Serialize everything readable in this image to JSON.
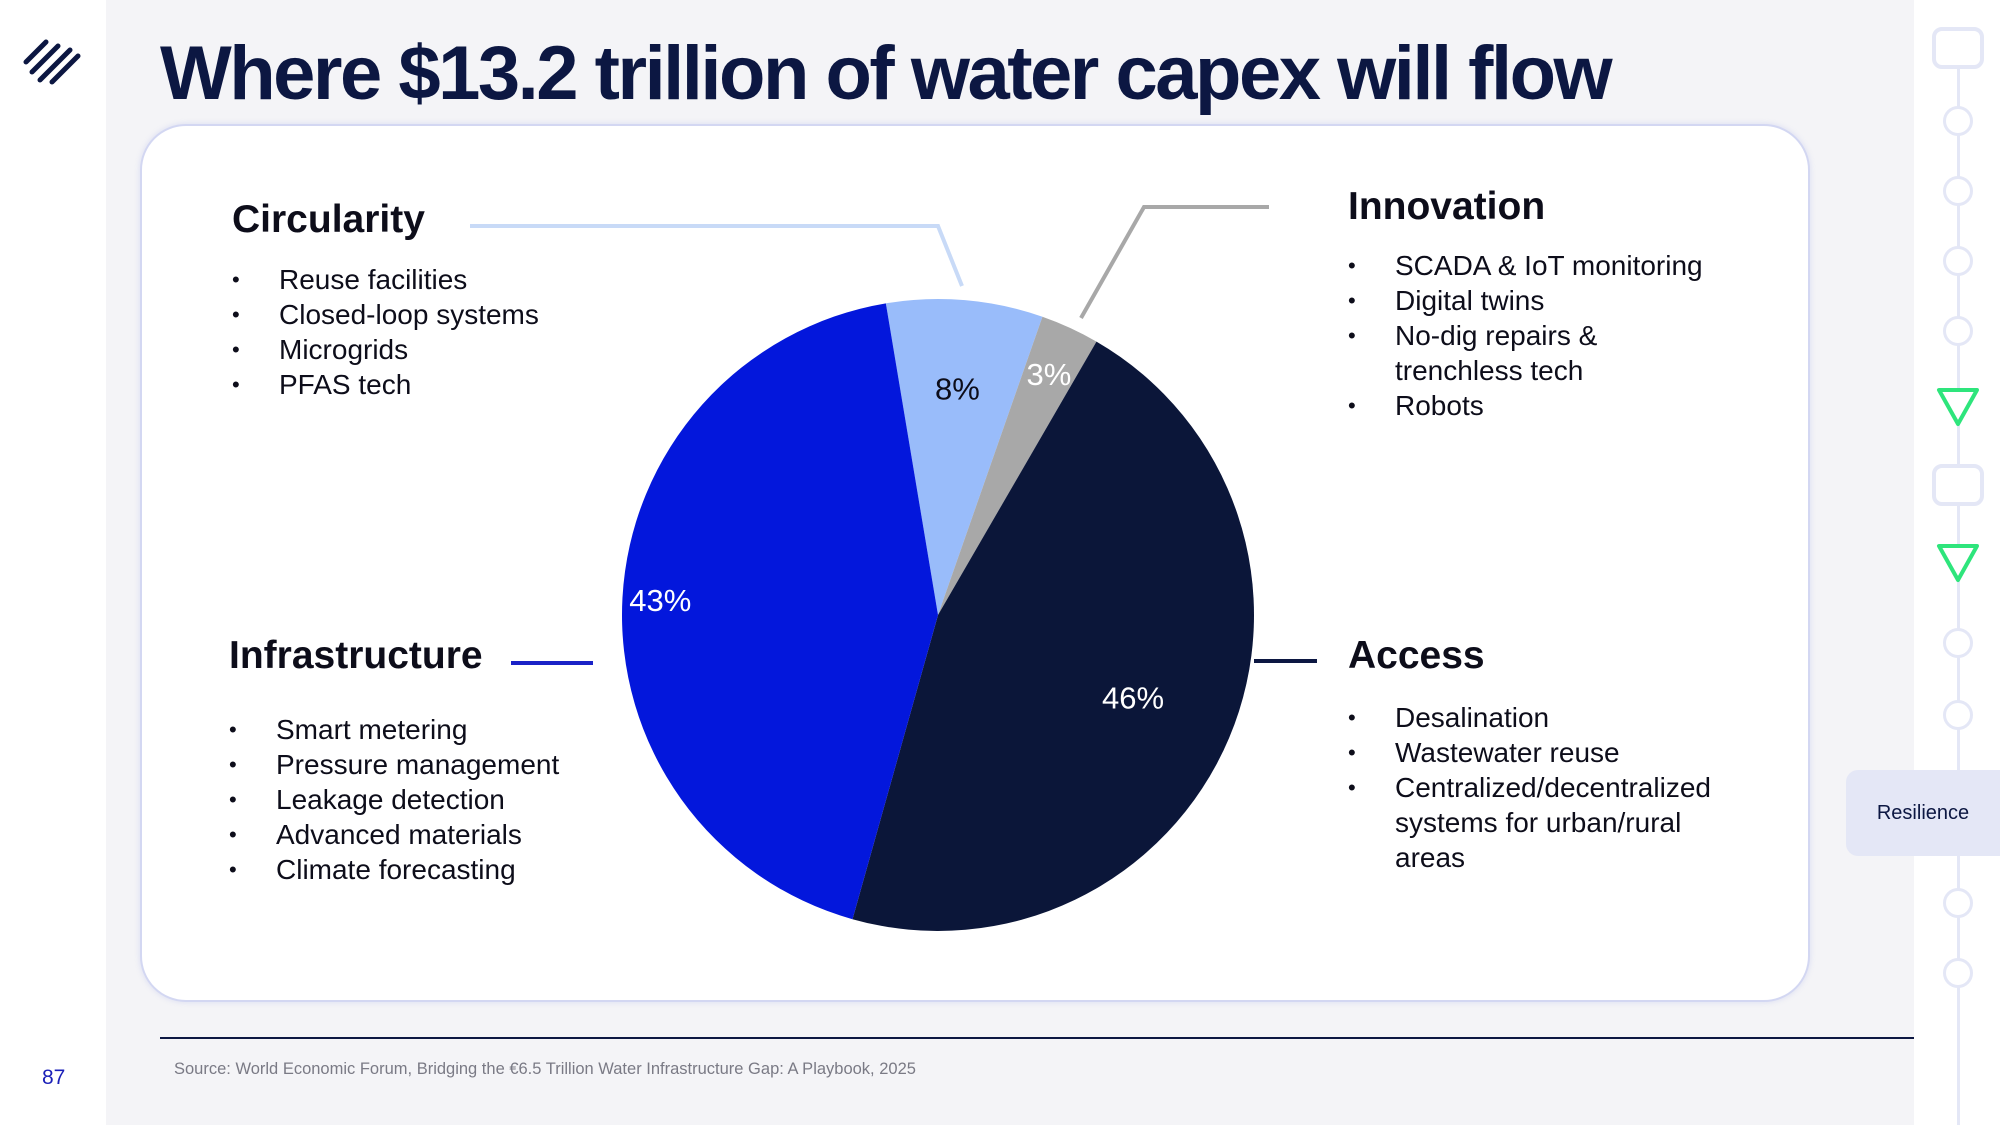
{
  "slide": {
    "title": "Where $13.2 trillion of water capex will flow",
    "page_number": "87",
    "source": "Source: World Economic Forum, Bridging the €6.5 Trillion Water Infrastructure Gap: A Playbook, 2025"
  },
  "nav": {
    "active_section": "Resilience"
  },
  "segments": {
    "circularity": {
      "heading": "Circularity",
      "bullets": [
        "Reuse facilities",
        "Closed-loop systems",
        "Microgrids",
        "PFAS tech"
      ]
    },
    "innovation": {
      "heading": "Innovation",
      "bullets": [
        "SCADA & IoT monitoring",
        "Digital twins",
        "No-dig repairs &",
        "trenchless tech",
        "Robots"
      ]
    },
    "infrastructure": {
      "heading": "Infrastructure",
      "bullets": [
        "Smart metering",
        "Pressure management",
        "Leakage detection",
        "Advanced materials",
        "Climate forecasting"
      ]
    },
    "access": {
      "heading": "Access",
      "bullets": [
        "Desalination",
        "Wastewater reuse",
        "Centralized/decentralized",
        "systems for urban/rural",
        "areas"
      ]
    }
  },
  "chart_data": {
    "type": "pie",
    "start_angle_deg": -9.5,
    "slices": [
      {
        "category": "Circularity",
        "label": "8%",
        "value": 8,
        "color": "#99bcfa",
        "label_color": "#0d0d1a"
      },
      {
        "category": "Innovation",
        "label": "3%",
        "value": 3,
        "color": "#a8a8a8",
        "label_color": "#ffffff"
      },
      {
        "category": "Access",
        "label": "46%",
        "value": 46,
        "color": "#0b1639",
        "label_color": "#ffffff"
      },
      {
        "category": "Infrastructure",
        "label": "43%",
        "value": 43,
        "color": "#0317dc",
        "label_color": "#ffffff"
      }
    ]
  },
  "colors": {
    "title": "#0c1742",
    "leader_circularity": "#c8daf7",
    "leader_innovation": "#a8a8a8",
    "leader_infrastructure": "#1a22c7",
    "leader_access": "#0c1742",
    "rail_accent": "#2ee57c"
  }
}
